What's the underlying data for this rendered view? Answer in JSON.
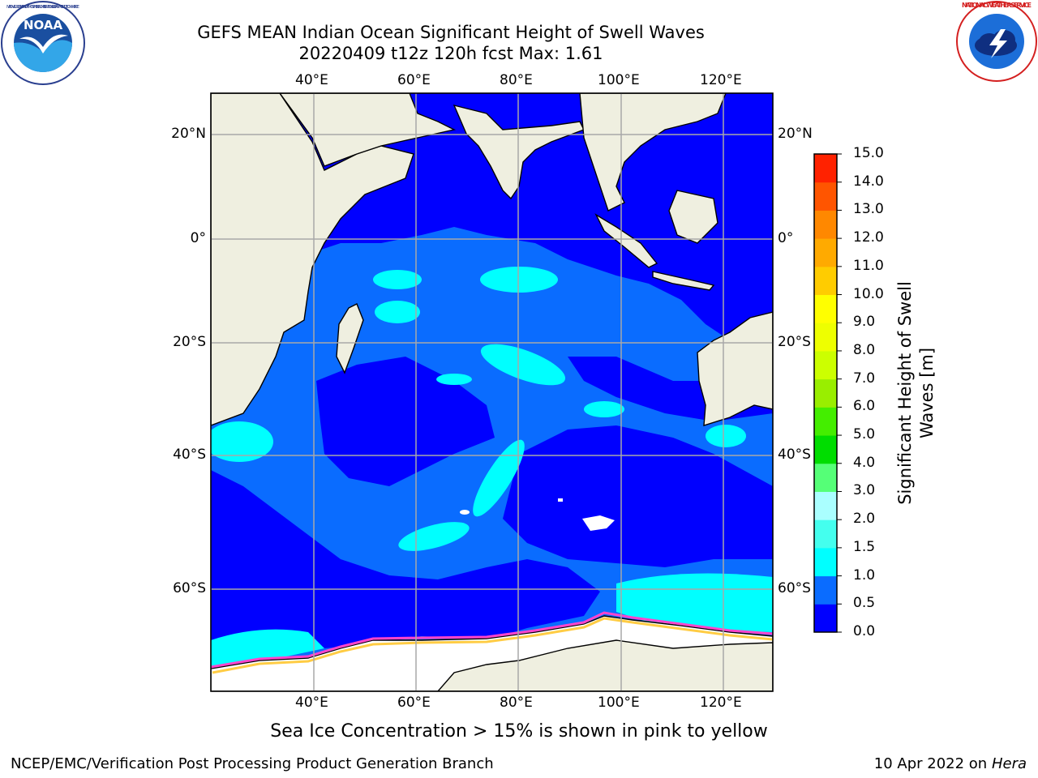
{
  "header": {
    "title_line1": "GEFS MEAN Indian Ocean Significant Height of Swell Waves",
    "title_line2": "20220409 t12z 120h fcst   Max: 1.61"
  },
  "logos": {
    "left": {
      "icon": "noaa-logo-icon",
      "text": "NOAA",
      "ring_text": "NATIONAL OCEANIC AND ATMOSPHERIC ADMINISTRATION · U.S. DEPARTMENT OF COMMERCE"
    },
    "right": {
      "icon": "national-weather-service-logo-icon",
      "ring_text": "NATIONAL WEATHER SERVICE"
    }
  },
  "map": {
    "lon_labels": [
      "40°E",
      "60°E",
      "80°E",
      "100°E",
      "120°E"
    ],
    "lat_labels": [
      "20°N",
      "0°",
      "20°S",
      "40°S",
      "60°S"
    ],
    "colors": {
      "land": "#efefe0",
      "ice": "#ffffff",
      "ice_edge": "#ff44cc",
      "grid": "#a8a8a8"
    }
  },
  "colorbar": {
    "title_line1": "Significant Height of Swell",
    "title_line2": "Waves [m]",
    "tick_labels": [
      "0.0",
      "0.5",
      "1.0",
      "1.5",
      "2.0",
      "3.0",
      "4.0",
      "5.0",
      "6.0",
      "7.0",
      "8.0",
      "9.0",
      "10.0",
      "11.0",
      "12.0",
      "13.0",
      "14.0",
      "15.0"
    ],
    "colors": [
      "#0000ff",
      "#0a6cff",
      "#00ffff",
      "#44ffee",
      "#aaffff",
      "#55ff77",
      "#00dd00",
      "#44ee00",
      "#99ee00",
      "#ccff00",
      "#eeff00",
      "#ffff00",
      "#ffcc00",
      "#ffaa00",
      "#ff8800",
      "#ff5500",
      "#ff2200"
    ]
  },
  "caption": "Sea Ice Concentration > 15% is shown in pink to yellow",
  "footer": {
    "left": "NCEP/EMC/Verification Post Processing Product Generation Branch",
    "right_prefix": "10 Apr 2022 on ",
    "right_host": "Hera"
  }
}
